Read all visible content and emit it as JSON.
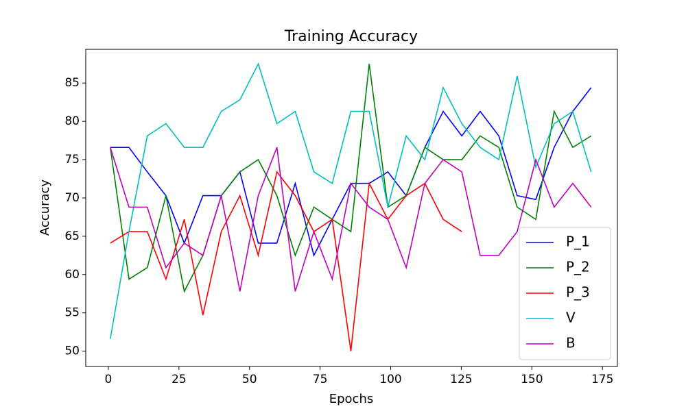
{
  "chart_data": {
    "type": "line",
    "title": "Training Accuracy",
    "x_label": "Epochs",
    "y_label": "Accuracy",
    "x": [
      0.7,
      7.3,
      13.8,
      20.4,
      26.9,
      33.5,
      40.0,
      46.6,
      53.1,
      59.7,
      66.2,
      72.8,
      79.3,
      85.9,
      92.4,
      99.0,
      105.5,
      112.1,
      118.6,
      125.2,
      131.7,
      138.3,
      144.8,
      151.4,
      157.9,
      164.5,
      171.0
    ],
    "series": [
      {
        "name": "P_1",
        "color": "#0000ff",
        "values": [
          76.6,
          76.6,
          73.4,
          70.3,
          64.1,
          70.3,
          70.3,
          73.4,
          64.1,
          64.1,
          71.9,
          62.5,
          67.2,
          71.9,
          71.9,
          73.4,
          70.3,
          76.6,
          81.3,
          78.1,
          81.3,
          78.1,
          70.3,
          69.8,
          76.6,
          81.3,
          84.4
        ]
      },
      {
        "name": "P_2",
        "color": "#008000",
        "values": [
          76.6,
          59.4,
          60.9,
          70.3,
          57.8,
          62.5,
          70.3,
          73.4,
          75.0,
          70.3,
          62.5,
          68.8,
          67.2,
          65.6,
          87.5,
          68.8,
          70.3,
          76.6,
          75.0,
          75.0,
          78.1,
          76.6,
          68.8,
          67.2,
          81.3,
          76.6,
          78.1
        ]
      },
      {
        "name": "P_3",
        "color": "#ff0000",
        "values": [
          64.1,
          65.6,
          65.6,
          59.4,
          67.2,
          54.7,
          65.6,
          70.3,
          62.5,
          73.4,
          70.3,
          65.6,
          67.2,
          50.0,
          71.9,
          67.2,
          70.3,
          71.9,
          67.2,
          65.6,
          null,
          null,
          null,
          null,
          null,
          null,
          null
        ]
      },
      {
        "name": "V",
        "color": "#00bfbf",
        "values": [
          51.6,
          65.6,
          78.1,
          79.7,
          76.6,
          76.6,
          81.3,
          82.8,
          87.5,
          79.7,
          81.3,
          73.4,
          71.9,
          81.3,
          81.3,
          68.8,
          78.1,
          75.0,
          84.4,
          79.7,
          76.6,
          75.0,
          85.9,
          74.0,
          79.7,
          81.3,
          73.4
        ]
      },
      {
        "name": "B",
        "color": "#bf00bf",
        "values": [
          76.6,
          68.8,
          68.8,
          60.9,
          64.1,
          62.5,
          70.3,
          57.8,
          70.3,
          76.6,
          57.8,
          65.6,
          59.4,
          71.9,
          68.8,
          67.2,
          60.9,
          71.9,
          75.0,
          73.4,
          62.5,
          62.5,
          65.6,
          75.0,
          68.8,
          71.9,
          68.8
        ]
      }
    ],
    "xlim": [
      -8,
      180.3
    ],
    "ylim": [
      48,
      89.4
    ],
    "xticks": [
      0,
      25,
      50,
      75,
      100,
      125,
      150,
      175
    ],
    "yticks": [
      50,
      55,
      60,
      65,
      70,
      75,
      80,
      85
    ],
    "legend": "lower right"
  }
}
